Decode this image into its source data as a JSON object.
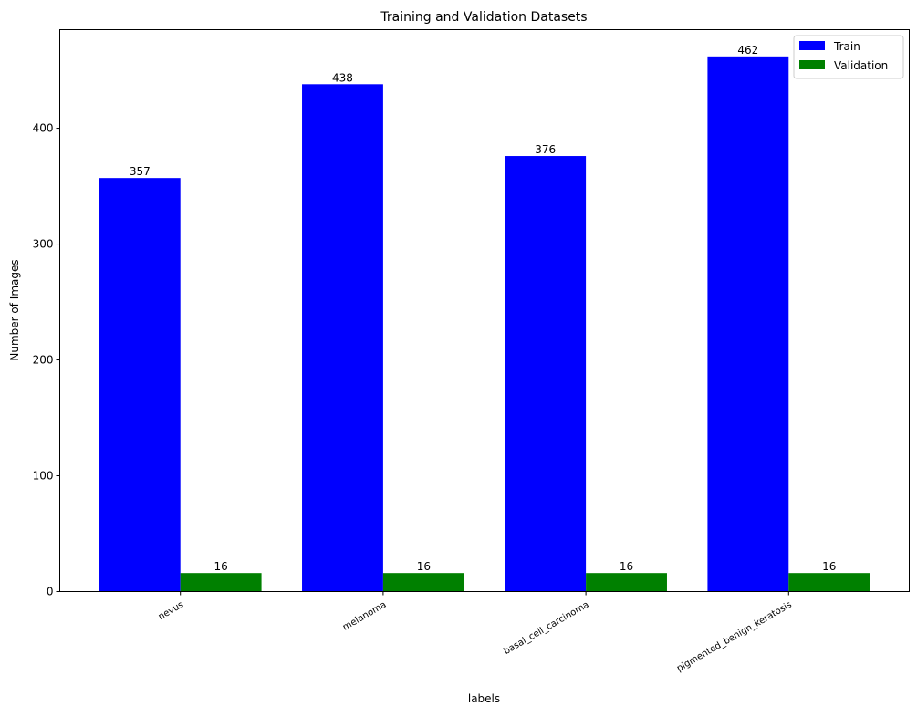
{
  "chart_data": {
    "type": "bar",
    "title": "Training and Validation Datasets",
    "xlabel": "labels",
    "ylabel": "Number of Images",
    "categories": [
      "nevus",
      "melanoma",
      "basal_cell_carcinoma",
      "pigmented_benign_keratosis"
    ],
    "series": [
      {
        "name": "Train",
        "values": [
          357,
          438,
          376,
          462
        ],
        "color": "#0000ff"
      },
      {
        "name": "Validation",
        "values": [
          16,
          16,
          16,
          16
        ],
        "color": "#008000"
      }
    ],
    "ylim": [
      0,
      485.1
    ],
    "yticks": [
      0,
      100,
      200,
      300,
      400
    ],
    "grid": false,
    "legend": "top-right"
  }
}
